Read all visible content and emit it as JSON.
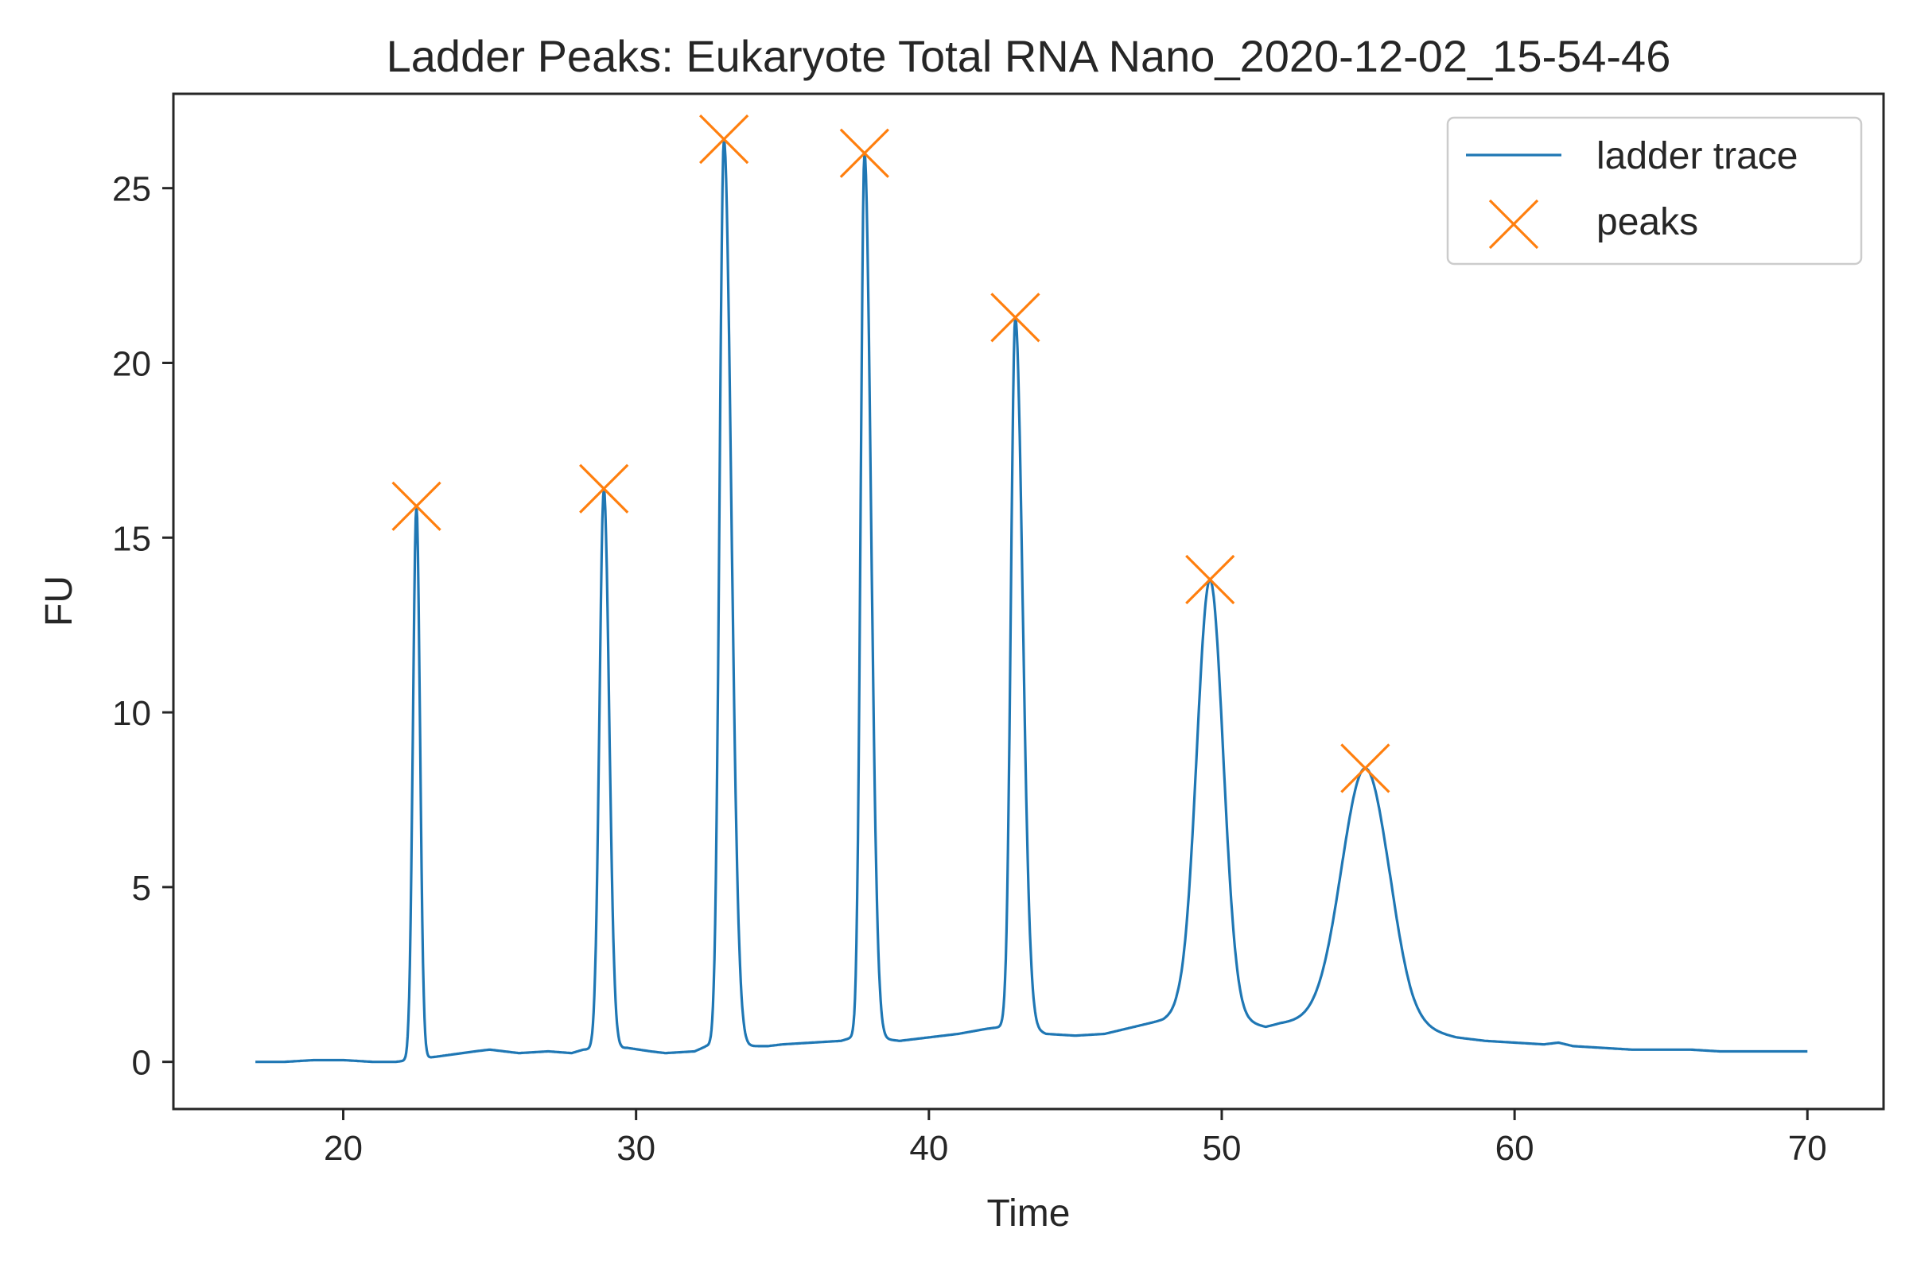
{
  "chart_data": {
    "type": "line",
    "title": "Ladder Peaks: Eukaryote Total RNA Nano_2020-12-02_15-54-46",
    "xlabel": "Time",
    "ylabel": "FU",
    "xlim": [
      14.2,
      72.6
    ],
    "ylim": [
      -1.35,
      27.7
    ],
    "x_ticks": [
      20,
      30,
      40,
      50,
      60,
      70
    ],
    "y_ticks": [
      0,
      5,
      10,
      15,
      20,
      25
    ],
    "grid": false,
    "legend_position": "top-right",
    "baseline": {
      "x": [
        17,
        18,
        19,
        20,
        21,
        21.8,
        23.2,
        24.5,
        25,
        26,
        27,
        27.8,
        28.2,
        29.7,
        30.5,
        31,
        32,
        32.4,
        34.0,
        34.5,
        35,
        36,
        37,
        37.4,
        38.1,
        38.5,
        39,
        40,
        41,
        42,
        42.5,
        43.5,
        44,
        45,
        46,
        47,
        48,
        48.5,
        51,
        51.5,
        52,
        53,
        54,
        55.8,
        56.5,
        57,
        58,
        59,
        60,
        61,
        61.5,
        62,
        63,
        64,
        65,
        66,
        67,
        68,
        70
      ],
      "y": [
        0,
        0,
        0.05,
        0.05,
        0,
        0,
        0.15,
        0.3,
        0.35,
        0.25,
        0.3,
        0.25,
        0.35,
        0.4,
        0.3,
        0.25,
        0.3,
        0.45,
        0.45,
        0.45,
        0.5,
        0.55,
        0.6,
        0.7,
        0.7,
        0.65,
        0.6,
        0.7,
        0.8,
        0.95,
        1.0,
        0.95,
        0.8,
        0.75,
        0.8,
        1.0,
        1.2,
        1.4,
        1.1,
        1.0,
        1.1,
        1.2,
        1.3,
        1.3,
        1.0,
        0.9,
        0.7,
        0.6,
        0.55,
        0.5,
        0.55,
        0.45,
        0.4,
        0.35,
        0.35,
        0.35,
        0.3,
        0.3,
        0.3
      ]
    },
    "peak_shapes": [
      {
        "center": 22.5,
        "sigma_left": 0.12,
        "sigma_right": 0.12
      },
      {
        "center": 28.9,
        "sigma_left": 0.15,
        "sigma_right": 0.18
      },
      {
        "center": 33.0,
        "sigma_left": 0.15,
        "sigma_right": 0.25
      },
      {
        "center": 37.8,
        "sigma_left": 0.13,
        "sigma_right": 0.22
      },
      {
        "center": 42.95,
        "sigma_left": 0.15,
        "sigma_right": 0.25
      },
      {
        "center": 49.6,
        "sigma_left": 0.45,
        "sigma_right": 0.45
      },
      {
        "center": 54.9,
        "sigma_left": 0.8,
        "sigma_right": 0.8
      }
    ],
    "series": [
      {
        "name": "ladder trace",
        "kind": "line",
        "color": "#1f77b4"
      },
      {
        "name": "peaks",
        "kind": "marker-x",
        "color": "#ff7f0e",
        "x": [
          22.5,
          28.9,
          33.0,
          37.8,
          42.95,
          49.6,
          54.9
        ],
        "y": [
          15.9,
          16.4,
          26.4,
          26.0,
          21.3,
          13.8,
          8.4
        ]
      }
    ]
  }
}
